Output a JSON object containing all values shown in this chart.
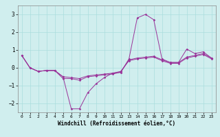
{
  "title": "",
  "xlabel": "Windchill (Refroidissement éolien,°C)",
  "ylabel": "",
  "background_color": "#d0eeee",
  "grid_color": "#aadddd",
  "line_color": "#993399",
  "x": [
    0,
    1,
    2,
    3,
    4,
    5,
    6,
    7,
    8,
    9,
    10,
    11,
    12,
    13,
    14,
    15,
    16,
    17,
    18,
    19,
    20,
    21,
    22,
    23
  ],
  "line1": [
    0.7,
    0.0,
    -0.2,
    -0.15,
    -0.15,
    -0.6,
    -0.6,
    -0.7,
    -0.5,
    -0.45,
    -0.4,
    -0.35,
    -0.25,
    0.5,
    2.8,
    3.0,
    2.7,
    0.5,
    0.3,
    0.3,
    1.05,
    0.8,
    0.9,
    0.55
  ],
  "line2": [
    0.7,
    0.0,
    -0.2,
    -0.15,
    -0.15,
    -0.5,
    -2.3,
    -2.3,
    -1.4,
    -0.9,
    -0.55,
    -0.3,
    -0.25,
    0.45,
    0.55,
    0.6,
    0.65,
    0.45,
    0.3,
    0.3,
    0.6,
    0.7,
    0.8,
    0.55
  ],
  "line3": [
    0.7,
    0.0,
    -0.2,
    -0.15,
    -0.15,
    -0.5,
    -0.55,
    -0.6,
    -0.45,
    -0.4,
    -0.35,
    -0.3,
    -0.2,
    0.4,
    0.5,
    0.55,
    0.6,
    0.4,
    0.25,
    0.25,
    0.55,
    0.65,
    0.75,
    0.5
  ],
  "ylim": [
    -2.5,
    3.5
  ],
  "yticks": [
    -2,
    -1,
    0,
    1,
    2,
    3
  ],
  "xticks": [
    0,
    1,
    2,
    3,
    4,
    5,
    6,
    7,
    8,
    9,
    10,
    11,
    12,
    13,
    14,
    15,
    16,
    17,
    18,
    19,
    20,
    21,
    22,
    23
  ],
  "figsize": [
    3.2,
    2.0
  ],
  "dpi": 100
}
